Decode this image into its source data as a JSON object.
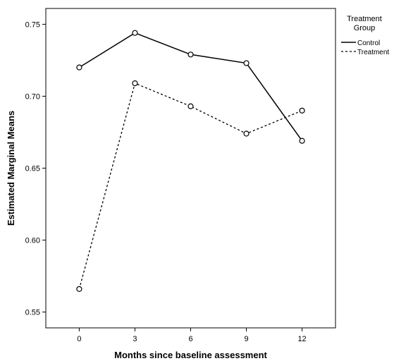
{
  "chart_data": {
    "type": "line",
    "title": "",
    "xlabel": "Months since baseline assessment",
    "ylabel": "Estimated Marginal Means",
    "x": [
      0,
      3,
      6,
      9,
      12
    ],
    "x_tick_labels": [
      "0",
      "3",
      "6",
      "9",
      "12"
    ],
    "y_tick_values": [
      0.55,
      0.6,
      0.65,
      0.7,
      0.75
    ],
    "y_tick_labels": [
      "0.55",
      "0.60",
      "0.65",
      "0.70",
      "0.75"
    ],
    "xlim": [
      -1.8,
      13.8
    ],
    "ylim": [
      0.539,
      0.761
    ],
    "grid": false,
    "legend": {
      "title_line1": "Treatment",
      "title_line2": "Group",
      "placement": "right"
    },
    "series": [
      {
        "name": "Control",
        "values": [
          0.72,
          0.744,
          0.729,
          0.723,
          0.669
        ],
        "line_style": "solid",
        "color": "#000000",
        "marker": "open-circle"
      },
      {
        "name": "Treatment",
        "values": [
          0.566,
          0.709,
          0.693,
          0.674,
          0.69
        ],
        "line_style": "dotted",
        "color": "#000000",
        "marker": "open-circle"
      }
    ]
  }
}
